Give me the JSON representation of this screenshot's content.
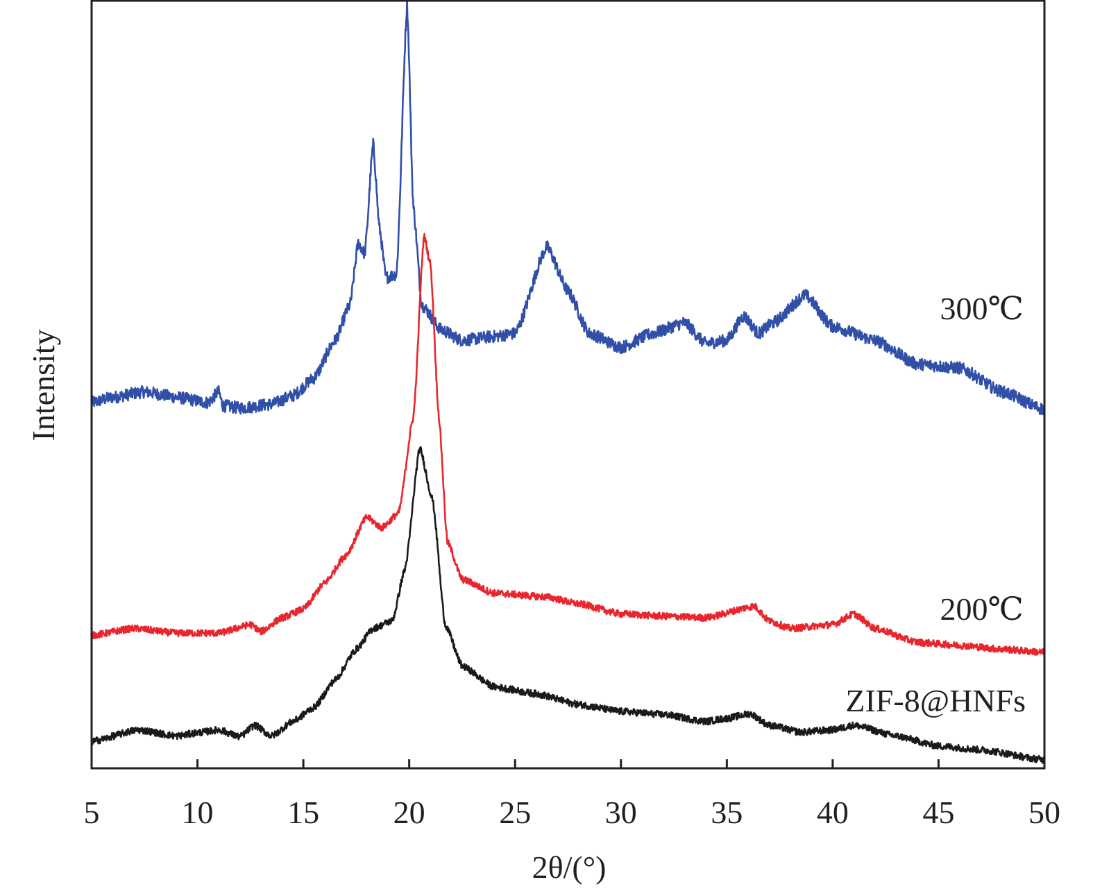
{
  "chart_data": {
    "type": "line",
    "title": "",
    "xlabel": "2θ/(°)",
    "ylabel": "Intensity",
    "xlim": [
      5,
      50
    ],
    "ylim": [
      0,
      100
    ],
    "y_units": "arbitrary",
    "x_ticks": [
      5,
      10,
      15,
      20,
      25,
      30,
      35,
      40,
      45,
      50
    ],
    "grid": false,
    "legend": "inline labels at right end of each curve",
    "series": [
      {
        "name": "300℃",
        "color": "#2f4fa8",
        "x": [
          5,
          6,
          7.5,
          9,
          10.5,
          11,
          11.2,
          12,
          13.5,
          14.5,
          15.5,
          16.5,
          17.2,
          17.6,
          17.9,
          18.3,
          18.6,
          18.9,
          19.4,
          19.9,
          20.2,
          20.6,
          21.5,
          22.5,
          24,
          25,
          26.5,
          27.5,
          28.5,
          30,
          31.5,
          33,
          34,
          35,
          35.8,
          36.5,
          37.2,
          38.7,
          40,
          42,
          44,
          46,
          48,
          50
        ],
        "y": [
          47.6,
          48.3,
          49.0,
          48.3,
          47.6,
          49.0,
          47.2,
          46.9,
          47.4,
          48.5,
          50.8,
          55.7,
          60.3,
          68.4,
          67.0,
          81.2,
          70.2,
          63.9,
          64.3,
          99.5,
          72.9,
          60.3,
          57.1,
          55.7,
          56.2,
          56.6,
          67.9,
          62.1,
          56.6,
          54.8,
          56.6,
          58.0,
          55.3,
          55.7,
          58.9,
          56.6,
          58.0,
          61.6,
          57.5,
          55.7,
          52.6,
          52.1,
          49.0,
          46.7
        ]
      },
      {
        "name": "200℃",
        "color": "#e8262d",
        "x": [
          5,
          7,
          9,
          11,
          12.5,
          13,
          14,
          15,
          16,
          17,
          18,
          18.7,
          19.5,
          20.2,
          20.7,
          21.0,
          21.4,
          21.8,
          22.5,
          24,
          26.5,
          28,
          30,
          32,
          34,
          36.3,
          37,
          38,
          40,
          41,
          42,
          44,
          46,
          48,
          50
        ],
        "y": [
          17.3,
          18.2,
          17.6,
          17.6,
          18.7,
          17.8,
          19.6,
          20.7,
          24.1,
          27.7,
          32.7,
          31.3,
          33.2,
          45.8,
          69.3,
          65.7,
          45.8,
          29.5,
          24.6,
          22.8,
          22.3,
          21.4,
          20.1,
          19.8,
          19.6,
          21.1,
          19.2,
          18.2,
          18.7,
          20.1,
          18.2,
          16.4,
          16.0,
          15.5,
          15.1
        ]
      },
      {
        "name": "ZIF-8@HNFs",
        "color": "#1a1a1a",
        "x": [
          5,
          7.2,
          9,
          10.2,
          11,
          12,
          12.7,
          13.5,
          14.5,
          15.5,
          16.5,
          17.5,
          18.3,
          19.2,
          19.8,
          20.5,
          21.1,
          21.7,
          22.5,
          24,
          26,
          28,
          30,
          32,
          34,
          35,
          36.1,
          37,
          38.5,
          40,
          41,
          43,
          45,
          47,
          50
        ],
        "y": [
          3.5,
          5.0,
          4.2,
          4.7,
          5.0,
          4.1,
          5.6,
          4.2,
          6.1,
          7.9,
          11.5,
          15.5,
          18.2,
          19.2,
          25.9,
          41.7,
          35.0,
          18.7,
          13.3,
          10.6,
          9.7,
          8.3,
          7.4,
          7.0,
          6.1,
          6.5,
          7.1,
          5.6,
          4.7,
          5.0,
          5.6,
          4.2,
          2.9,
          2.4,
          1.1
        ]
      }
    ]
  }
}
